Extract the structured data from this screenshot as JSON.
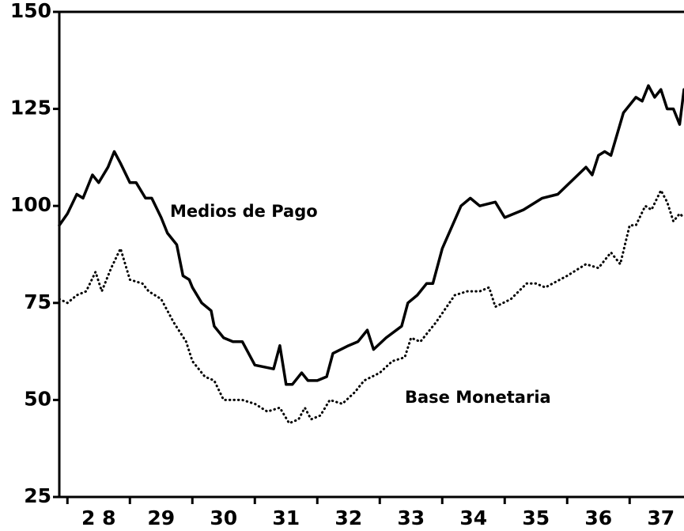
{
  "chart_data": {
    "type": "line",
    "xlim": [
      27.87,
      37.87
    ],
    "xticks": [
      {
        "value": 28.5,
        "label": "2 8"
      },
      {
        "value": 29.5,
        "label": "29"
      },
      {
        "value": 30.5,
        "label": "30"
      },
      {
        "value": 31.5,
        "label": "31"
      },
      {
        "value": 32.5,
        "label": "32"
      },
      {
        "value": 33.5,
        "label": "33"
      },
      {
        "value": 34.5,
        "label": "34"
      },
      {
        "value": 35.5,
        "label": "35"
      },
      {
        "value": 36.5,
        "label": "36"
      },
      {
        "value": 37.5,
        "label": "37"
      }
    ],
    "year_boundaries": [
      28,
      29,
      30,
      31,
      32,
      33,
      34,
      35,
      36,
      37
    ],
    "ylim": [
      25,
      150
    ],
    "yticks": [
      25,
      50,
      75,
      100,
      125,
      150
    ],
    "series": [
      {
        "name": "Medios de Pago",
        "color": "#000000",
        "dash": "solid",
        "x": [
          27.87,
          28.0,
          28.15,
          28.25,
          28.4,
          28.5,
          28.65,
          28.75,
          28.85,
          29.0,
          29.1,
          29.25,
          29.35,
          29.5,
          29.6,
          29.75,
          29.85,
          29.95,
          30.0,
          30.15,
          30.3,
          30.35,
          30.5,
          30.65,
          30.8,
          31.0,
          31.3,
          31.4,
          31.5,
          31.6,
          31.75,
          31.85,
          32.0,
          32.15,
          32.25,
          32.5,
          32.65,
          32.8,
          32.9,
          33.1,
          33.35,
          33.45,
          33.6,
          33.75,
          33.85,
          34.0,
          34.3,
          34.45,
          34.6,
          34.85,
          35.0,
          35.3,
          35.6,
          35.85,
          36.3,
          36.4,
          36.5,
          36.6,
          36.7,
          36.9,
          37.1,
          37.2,
          37.3,
          37.4,
          37.5,
          37.6,
          37.7,
          37.8,
          37.87
        ],
        "values": [
          95,
          98,
          103,
          102,
          108,
          106,
          110,
          114,
          111,
          106,
          106,
          102,
          102,
          97,
          93,
          90,
          82,
          81,
          79,
          75,
          73,
          69,
          66,
          65,
          65,
          59,
          58,
          64,
          54,
          54,
          57,
          55,
          55,
          56,
          62,
          64,
          65,
          68,
          63,
          66,
          69,
          75,
          77,
          80,
          80,
          89,
          100,
          102,
          100,
          101,
          97,
          99,
          102,
          103,
          110,
          108,
          113,
          114,
          113,
          124,
          128,
          127,
          131,
          128,
          130,
          125,
          125,
          121,
          130
        ]
      },
      {
        "name": "Base Monetaria",
        "color": "#000000",
        "dash": "dotted",
        "x": [
          27.87,
          28.0,
          28.15,
          28.3,
          28.45,
          28.55,
          28.7,
          28.85,
          29.0,
          29.2,
          29.3,
          29.5,
          29.7,
          29.9,
          30.0,
          30.2,
          30.35,
          30.5,
          30.8,
          31.0,
          31.2,
          31.4,
          31.55,
          31.7,
          31.8,
          31.9,
          32.05,
          32.2,
          32.4,
          32.6,
          32.75,
          33.0,
          33.2,
          33.4,
          33.5,
          33.65,
          33.9,
          34.2,
          34.4,
          34.6,
          34.75,
          34.85,
          35.1,
          35.35,
          35.5,
          35.65,
          36.0,
          36.3,
          36.5,
          36.7,
          36.85,
          37.0,
          37.1,
          37.25,
          37.35,
          37.5,
          37.6,
          37.7,
          37.8,
          37.87
        ],
        "values": [
          76,
          75,
          77,
          78,
          83,
          78,
          84,
          89,
          81,
          80,
          78,
          76,
          70,
          65,
          60,
          56,
          55,
          50,
          50,
          49,
          47,
          48,
          44,
          45,
          48,
          45,
          46,
          50,
          49,
          52,
          55,
          57,
          60,
          61,
          66,
          65,
          70,
          77,
          78,
          78,
          79,
          74,
          76,
          80,
          80,
          79,
          82,
          85,
          84,
          88,
          85,
          95,
          95,
          100,
          99,
          104,
          101,
          96,
          98,
          97
        ]
      }
    ]
  }
}
